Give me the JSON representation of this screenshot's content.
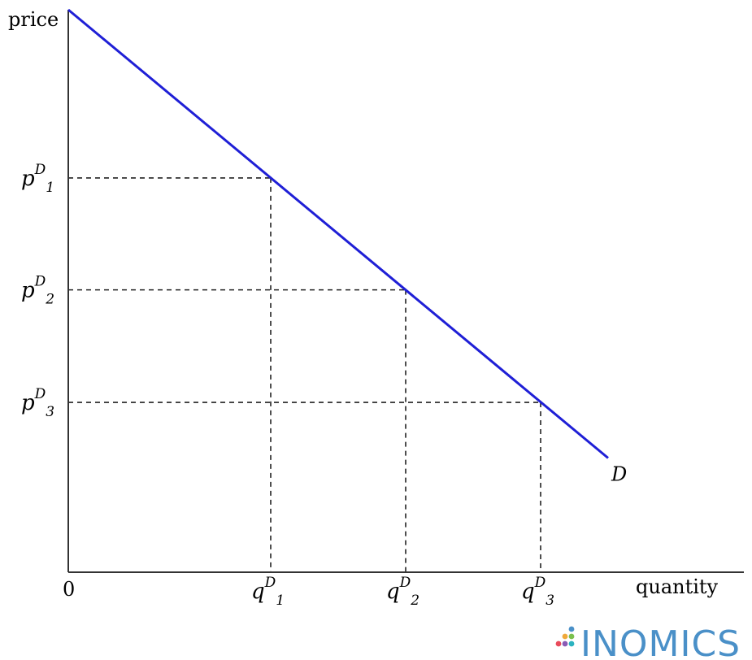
{
  "chart_data": {
    "type": "line",
    "xlabel": "quantity",
    "ylabel": "price",
    "origin_label": "0",
    "xlim": [
      0,
      10
    ],
    "ylim": [
      0,
      10
    ],
    "series": [
      {
        "name": "D",
        "color": "#1f1fd6",
        "x": [
          0,
          8
        ],
        "y": [
          10,
          2.03
        ]
      }
    ],
    "reference_points": [
      {
        "x_label": {
          "base": "q",
          "sup": "D",
          "sub": "1"
        },
        "y_label": {
          "base": "p",
          "sup": "D",
          "sub": "1"
        },
        "x": 3,
        "y": 7.01
      },
      {
        "x_label": {
          "base": "q",
          "sup": "D",
          "sub": "2"
        },
        "y_label": {
          "base": "p",
          "sup": "D",
          "sub": "2"
        },
        "x": 5,
        "y": 5.02
      },
      {
        "x_label": {
          "base": "q",
          "sup": "D",
          "sub": "3"
        },
        "y_label": {
          "base": "p",
          "sup": "D",
          "sub": "3"
        },
        "x": 7,
        "y": 3.02
      }
    ],
    "grid": false,
    "reference_line_style": "dashed"
  },
  "branding": {
    "logo_text": "INOMICS",
    "logo_icon": "dots-triangle-icon",
    "dot_colors": [
      "#4a90c8",
      "#f0a93b",
      "#7ac04d",
      "#e94b5b",
      "#8a5bb5",
      "#2bb3c0"
    ]
  }
}
